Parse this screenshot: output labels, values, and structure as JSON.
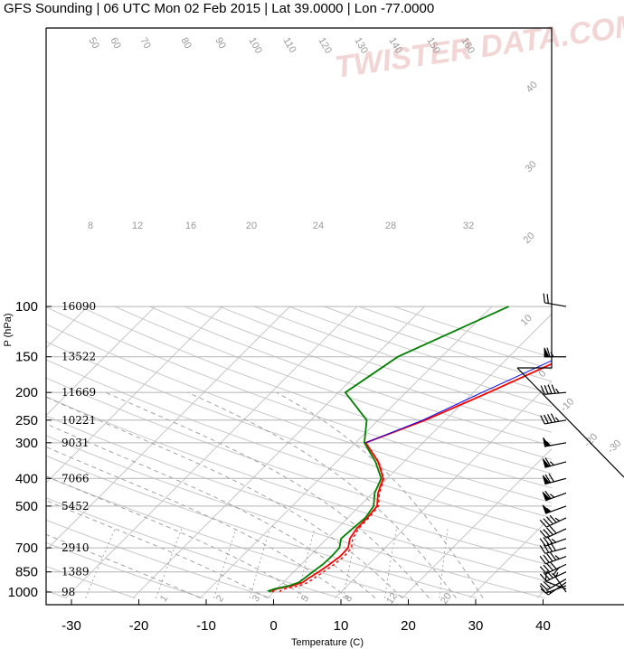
{
  "chart_data": {
    "type": "line",
    "title": "GFS Sounding | 06 UTC Mon 02 Feb 2015 | Lat 39.0000 | Lon -77.0000",
    "xlabel": "Temperature (C)",
    "ylabel": "P (hPa)",
    "xlim": [
      -33,
      50
    ],
    "ylim": [
      1050,
      100
    ],
    "y_scale": "log",
    "x_ticks": [
      -30,
      -20,
      -10,
      0,
      10,
      20,
      30,
      40
    ],
    "pressure_ticks": [
      100,
      150,
      200,
      250,
      300,
      400,
      500,
      700,
      850,
      1000
    ],
    "heights_m": [
      "16090",
      "13522",
      "11669",
      "10221",
      "9031",
      "7066",
      "5452",
      "2910",
      "1389",
      "98"
    ],
    "watermark": "TWISTER DATA.COM",
    "mixing_ratio_labels": [
      "8",
      "12",
      "16",
      "20",
      "24",
      "28",
      "32"
    ],
    "moist_adiabat_labels": [
      "1",
      "2",
      "3",
      "5",
      "8",
      "12",
      "20"
    ],
    "isotherm_labels": [
      "40",
      "30",
      "20",
      "10",
      "0",
      "-10",
      "-20",
      "-30"
    ],
    "theta_labels": [
      "50",
      "60",
      "70",
      "80",
      "90",
      "100",
      "110",
      "120",
      "130",
      "140",
      "150",
      "160"
    ],
    "series": [
      {
        "key": "temperature",
        "color": "#ff0000",
        "points": [
          [
            1000,
            0.0
          ],
          [
            990,
            -0.4
          ],
          [
            975,
            0.0
          ],
          [
            950,
            1.8
          ],
          [
            925,
            2.9
          ],
          [
            900,
            3.1
          ],
          [
            850,
            3.7
          ],
          [
            800,
            4.2
          ],
          [
            750,
            4.6
          ],
          [
            700,
            4.5
          ],
          [
            650,
            3.4
          ],
          [
            600,
            2.9
          ],
          [
            550,
            2.9
          ],
          [
            500,
            2.6
          ],
          [
            450,
            0.8
          ],
          [
            400,
            -0.6
          ],
          [
            350,
            -3.8
          ],
          [
            300,
            -8.5
          ],
          [
            250,
            -3.0
          ],
          [
            200,
            2.3
          ],
          [
            150,
            8.7
          ],
          [
            100,
            15.0
          ]
        ]
      },
      {
        "key": "virtual-temperature",
        "color": "#ff0000",
        "dashed": true,
        "points": [
          [
            1000,
            1.0
          ],
          [
            990,
            0.8
          ],
          [
            975,
            1.2
          ],
          [
            950,
            2.9
          ],
          [
            925,
            3.7
          ],
          [
            900,
            3.9
          ],
          [
            850,
            4.4
          ],
          [
            800,
            4.9
          ],
          [
            750,
            5.2
          ],
          [
            700,
            5.0
          ],
          [
            650,
            3.8
          ],
          [
            600,
            3.2
          ],
          [
            550,
            3.1
          ],
          [
            500,
            2.8
          ],
          [
            450,
            1.0
          ],
          [
            400,
            -0.5
          ],
          [
            350,
            -3.7
          ],
          [
            300,
            -8.5
          ]
        ]
      },
      {
        "key": "virtual-temperature-aloft",
        "color": "#0000ff",
        "points": [
          [
            300,
            -8.5
          ],
          [
            250,
            -3.4
          ],
          [
            200,
            1.3
          ],
          [
            150,
            7.6
          ],
          [
            100,
            14.1
          ]
        ]
      },
      {
        "key": "dewpoint",
        "color": "#008000",
        "points": [
          [
            1000,
            -0.4
          ],
          [
            990,
            -0.9
          ],
          [
            975,
            -0.3
          ],
          [
            950,
            1.4
          ],
          [
            925,
            2.3
          ],
          [
            900,
            2.5
          ],
          [
            850,
            2.8
          ],
          [
            800,
            3.2
          ],
          [
            750,
            3.3
          ],
          [
            700,
            3.2
          ],
          [
            650,
            2.1
          ],
          [
            600,
            2.3
          ],
          [
            550,
            2.6
          ],
          [
            500,
            2.1
          ],
          [
            450,
            0.3
          ],
          [
            400,
            -0.9
          ],
          [
            350,
            -4.2
          ],
          [
            300,
            -8.7
          ],
          [
            250,
            -11.7
          ],
          [
            200,
            -19.0
          ],
          [
            150,
            -16.5
          ],
          [
            100,
            -7.5
          ]
        ]
      }
    ],
    "wind_barbs": [
      {
        "p": 1000,
        "dir": 325,
        "kt": 15
      },
      {
        "p": 975,
        "dir": 290,
        "kt": 10
      },
      {
        "p": 950,
        "dir": 250,
        "kt": 10
      },
      {
        "p": 925,
        "dir": 235,
        "kt": 15
      },
      {
        "p": 900,
        "dir": 240,
        "kt": 20
      },
      {
        "p": 850,
        "dir": 245,
        "kt": 35
      },
      {
        "p": 800,
        "dir": 245,
        "kt": 40
      },
      {
        "p": 750,
        "dir": 250,
        "kt": 45
      },
      {
        "p": 700,
        "dir": 255,
        "kt": 40
      },
      {
        "p": 650,
        "dir": 250,
        "kt": 35
      },
      {
        "p": 600,
        "dir": 245,
        "kt": 40
      },
      {
        "p": 550,
        "dir": 245,
        "kt": 45
      },
      {
        "p": 500,
        "dir": 250,
        "kt": 55
      },
      {
        "p": 450,
        "dir": 250,
        "kt": 65
      },
      {
        "p": 400,
        "dir": 255,
        "kt": 70
      },
      {
        "p": 350,
        "dir": 255,
        "kt": 65
      },
      {
        "p": 300,
        "dir": 260,
        "kt": 55
      },
      {
        "p": 250,
        "dir": 260,
        "kt": 45
      },
      {
        "p": 200,
        "dir": 265,
        "kt": 45
      },
      {
        "p": 150,
        "dir": 270,
        "kt": 65
      },
      {
        "p": 100,
        "dir": 280,
        "kt": 20
      }
    ]
  }
}
